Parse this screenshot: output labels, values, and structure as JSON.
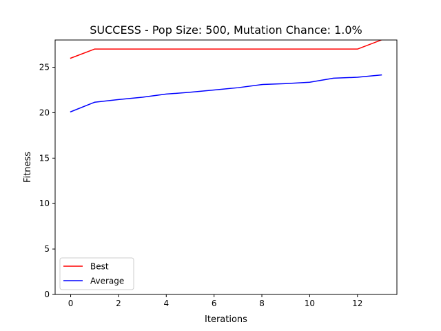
{
  "chart_data": {
    "type": "line",
    "title": "SUCCESS - Pop Size: 500, Mutation Chance: 1.0%",
    "xlabel": "Iterations",
    "ylabel": "Fitness",
    "xlim": [
      -0.65,
      13.65
    ],
    "ylim": [
      0,
      28
    ],
    "xticks": [
      0,
      2,
      4,
      6,
      8,
      10,
      12
    ],
    "yticks": [
      0,
      5,
      10,
      15,
      20,
      25
    ],
    "grid": false,
    "legend_position": "lower-left",
    "x": [
      0,
      1,
      2,
      3,
      4,
      5,
      6,
      7,
      8,
      9,
      10,
      11,
      12,
      13
    ],
    "series": [
      {
        "name": "Best",
        "color": "#ff0000",
        "values": [
          26,
          27,
          27,
          27,
          27,
          27,
          27,
          27,
          27,
          27,
          27,
          27,
          27,
          28
        ]
      },
      {
        "name": "Average",
        "color": "#0000ff",
        "values": [
          20.1,
          21.15,
          21.45,
          21.7,
          22.05,
          22.25,
          22.5,
          22.75,
          23.1,
          23.2,
          23.35,
          23.8,
          23.9,
          24.15
        ]
      }
    ]
  }
}
